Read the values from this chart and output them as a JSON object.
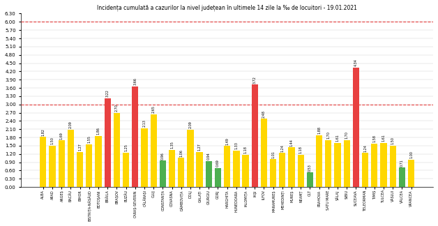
{
  "title": "Incidența cumulată a cazurilor la nivel județean în ultimele 14 zile la ‰ de locuitori - 19.01.2021",
  "categories": [
    "ALBA",
    "ARAD",
    "ARGEȘ",
    "BACĂU",
    "BIHOR",
    "BISTRIȚA-NĂSĂUD",
    "BOTOȘANI",
    "BRĂILA",
    "BRAȘOV",
    "BUZĂU",
    "CARAȘ-SEVERIN",
    "CĂLĂRAȘI",
    "CLUJ",
    "CONSTANȚA",
    "COVASNA",
    "DÂMBOVIȚA",
    "DOLJ",
    "GALAȚI",
    "GIURGIU",
    "GORJ",
    "HARGHITA",
    "HUNEDOARA",
    "IALOMIȚA",
    "IAȘI",
    "ILFOV",
    "MARAMUREȘ",
    "MEHEDINȚI",
    "MUREȘ",
    "NEAMȚ",
    "OLT",
    "PRAHOVA",
    "SATU MARE",
    "SĂLAJ",
    "SIBIU",
    "SUCEAVA",
    "TELEORMAN",
    "TIMIȘ",
    "TULCEA",
    "VÂSLUI",
    "VÂLCEA",
    "VRANCEA"
  ],
  "values": [
    1.82,
    1.5,
    1.69,
    2.09,
    1.27,
    1.55,
    1.86,
    3.22,
    2.7,
    1.25,
    3.66,
    2.13,
    2.65,
    0.96,
    1.35,
    1.06,
    2.09,
    1.27,
    0.94,
    0.69,
    1.49,
    1.33,
    1.18,
    3.72,
    2.48,
    1.01,
    1.24,
    1.44,
    1.18,
    0.53,
    1.88,
    1.7,
    1.61,
    1.7,
    4.34,
    1.24,
    1.58,
    1.61,
    1.5,
    0.71,
    1.0
  ],
  "colors": [
    "yellow",
    "yellow",
    "yellow",
    "yellow",
    "yellow",
    "yellow",
    "yellow",
    "red",
    "yellow",
    "yellow",
    "red",
    "yellow",
    "yellow",
    "green",
    "yellow",
    "yellow",
    "yellow",
    "yellow",
    "green",
    "green",
    "yellow",
    "yellow",
    "yellow",
    "red",
    "yellow",
    "yellow",
    "yellow",
    "yellow",
    "yellow",
    "green",
    "yellow",
    "yellow",
    "yellow",
    "yellow",
    "red",
    "yellow",
    "yellow",
    "yellow",
    "yellow",
    "green",
    "yellow"
  ],
  "ylim": [
    0,
    6.3
  ],
  "yticks": [
    0.0,
    0.3,
    0.6,
    0.9,
    1.2,
    1.5,
    1.8,
    2.1,
    2.4,
    2.7,
    3.0,
    3.3,
    3.6,
    3.9,
    4.2,
    4.5,
    4.8,
    5.1,
    5.4,
    5.7,
    6.0,
    6.3
  ],
  "hlines": [
    3.0,
    6.0
  ],
  "hline_color": "#e84040",
  "background_color": "#ffffff",
  "bar_color_map": {
    "red": "#e84040",
    "yellow": "#ffd700",
    "green": "#4caf50"
  }
}
